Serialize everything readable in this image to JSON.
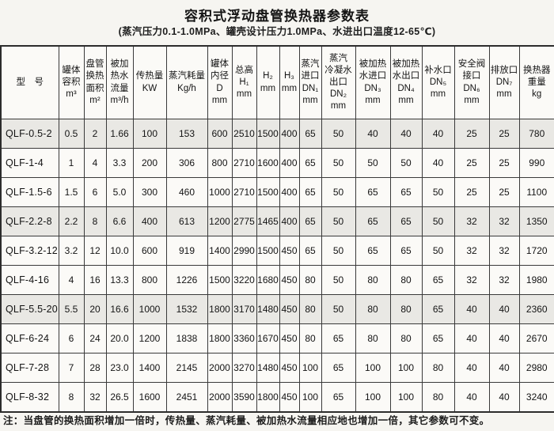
{
  "page": {
    "title": "容积式浮动盘管换热器参数表",
    "subtitle": "(蒸汽压力0.1-1.0MPa、罐壳设计压力1.0MPa、水进出口温度12-65℃)",
    "note": "注：当盘管的换热面积增加一倍时，传热量、蒸汽耗量、被加热水流量相应地也增加一倍，其它参数可不变。"
  },
  "colors": {
    "paper": "#f6f5f1",
    "table_bg": "#fbfaf7",
    "shaded_row": "#e9e8e4",
    "border": "#3a3a3a",
    "text": "#141414"
  },
  "chart_data": {
    "type": "table",
    "columns": [
      "型　号",
      "罐体\n容积\nm³",
      "盘管\n换热\n面积\nm²",
      "被加\n热水\n流量\nm³/h",
      "传热量\nKW",
      "蒸汽耗量\nKg/h",
      "罐体\n内径\nD\nmm",
      "总高\nH₁\nmm",
      "H₂\nmm",
      "H₃\nmm",
      "蒸汽\n进口\nDN₁\nmm",
      "蒸汽\n冷凝水\n出口\nDN₂\nmm",
      "被加热\n水进口\nDN₃\nmm",
      "被加热\n水出口\nDN₄\nmm",
      "补水口\nDN₅\nmm",
      "安全阀\n接口\nDN₆\nmm",
      "排放口\nDN₇\nmm",
      "换热器\n重量\nkg"
    ],
    "rows": [
      [
        "QLF-0.5-2",
        "0.5",
        "2",
        "1.66",
        "100",
        "153",
        "600",
        "2510",
        "1500",
        "400",
        "65",
        "50",
        "40",
        "40",
        "40",
        "25",
        "25",
        "780"
      ],
      [
        "QLF-1-4",
        "1",
        "4",
        "3.3",
        "200",
        "306",
        "800",
        "2710",
        "1600",
        "400",
        "65",
        "50",
        "50",
        "50",
        "40",
        "25",
        "25",
        "990"
      ],
      [
        "QLF-1.5-6",
        "1.5",
        "6",
        "5.0",
        "300",
        "460",
        "1000",
        "2710",
        "1500",
        "400",
        "65",
        "50",
        "65",
        "65",
        "50",
        "25",
        "25",
        "1100"
      ],
      [
        "QLF-2.2-8",
        "2.2",
        "8",
        "6.6",
        "400",
        "613",
        "1200",
        "2775",
        "1465",
        "400",
        "65",
        "50",
        "65",
        "65",
        "50",
        "32",
        "32",
        "1350"
      ],
      [
        "QLF-3.2-12",
        "3.2",
        "12",
        "10.0",
        "600",
        "919",
        "1400",
        "2990",
        "1500",
        "450",
        "65",
        "50",
        "65",
        "65",
        "50",
        "32",
        "32",
        "1720"
      ],
      [
        "QLF-4-16",
        "4",
        "16",
        "13.3",
        "800",
        "1226",
        "1500",
        "3220",
        "1680",
        "450",
        "80",
        "50",
        "80",
        "80",
        "65",
        "32",
        "32",
        "1980"
      ],
      [
        "QLF-5.5-20",
        "5.5",
        "20",
        "16.6",
        "1000",
        "1532",
        "1800",
        "3170",
        "1480",
        "450",
        "80",
        "50",
        "80",
        "80",
        "65",
        "40",
        "40",
        "2360"
      ],
      [
        "QLF-6-24",
        "6",
        "24",
        "20.0",
        "1200",
        "1838",
        "1800",
        "3360",
        "1670",
        "450",
        "80",
        "65",
        "80",
        "80",
        "65",
        "40",
        "40",
        "2670"
      ],
      [
        "QLF-7-28",
        "7",
        "28",
        "23.0",
        "1400",
        "2145",
        "2000",
        "3270",
        "1480",
        "450",
        "100",
        "65",
        "100",
        "100",
        "80",
        "40",
        "40",
        "2980"
      ],
      [
        "QLF-8-32",
        "8",
        "32",
        "26.5",
        "1600",
        "2451",
        "2000",
        "3590",
        "1800",
        "450",
        "100",
        "65",
        "100",
        "100",
        "80",
        "40",
        "40",
        "3240"
      ]
    ]
  }
}
